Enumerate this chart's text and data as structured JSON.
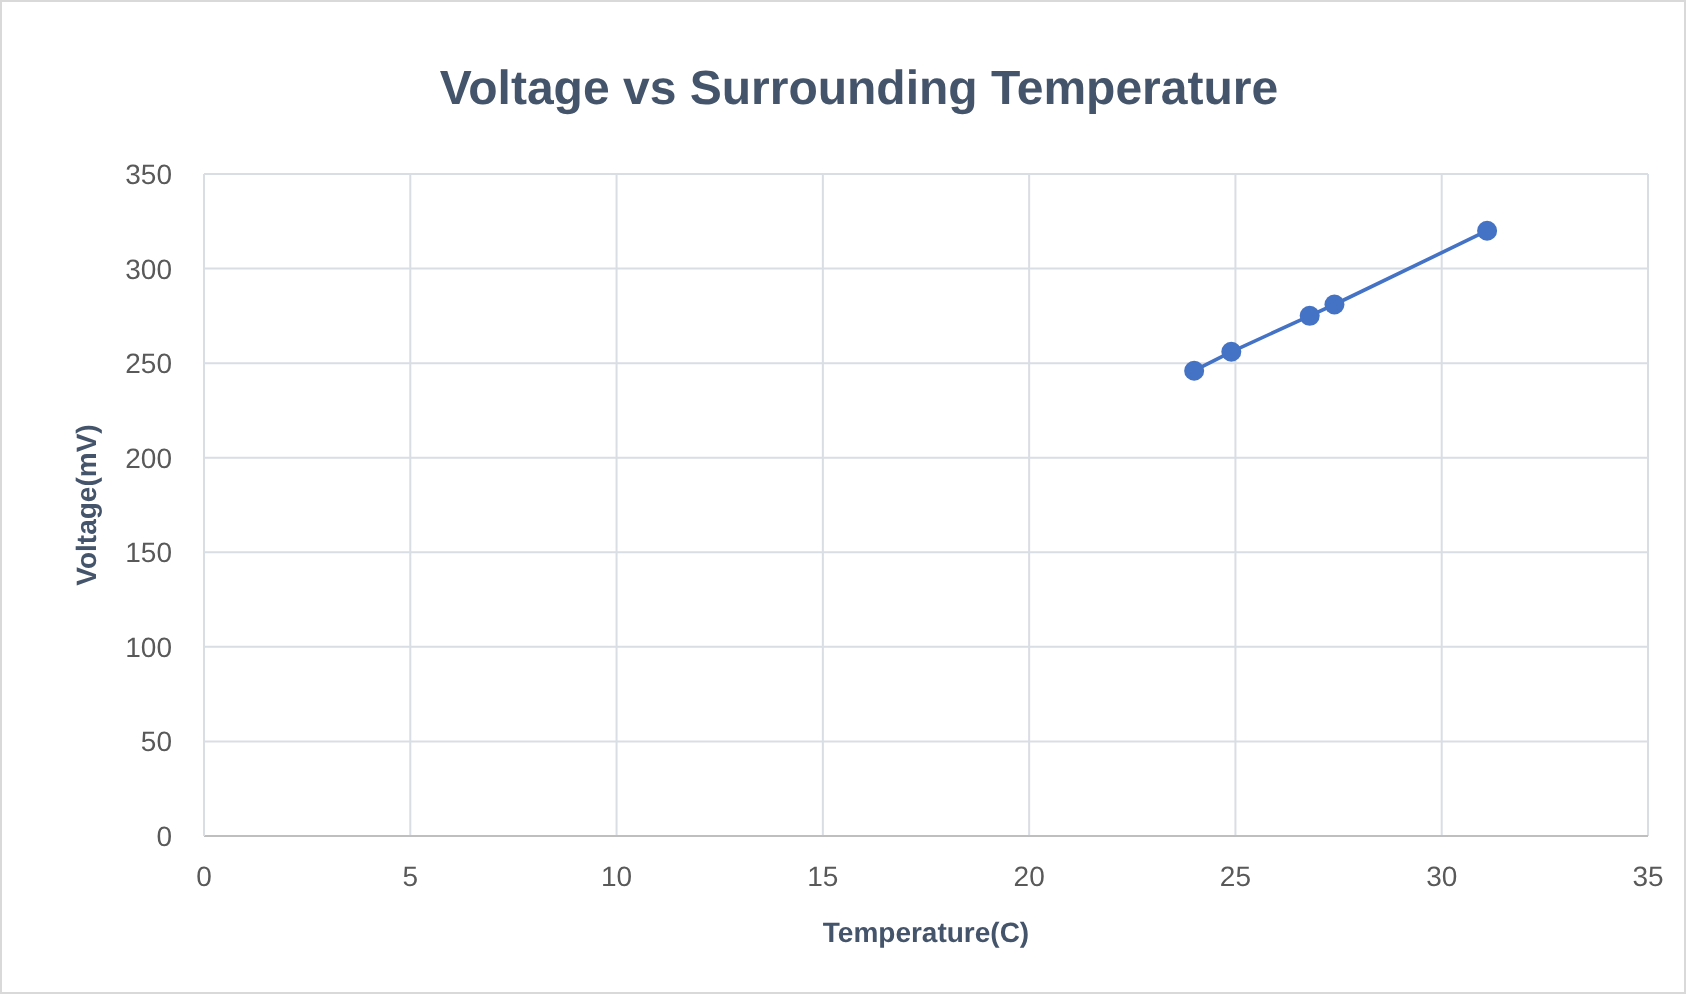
{
  "chart_data": {
    "type": "line",
    "title": "Voltage vs Surrounding Temperature",
    "xlabel": "Temperature(C)",
    "ylabel": "Voltage(mV)",
    "x": [
      24.0,
      24.9,
      26.8,
      27.4,
      31.1
    ],
    "series": [
      {
        "color": "#4472c4",
        "values": [
          246,
          256,
          275,
          281,
          320
        ]
      }
    ],
    "xlim": [
      0,
      35
    ],
    "xticks": [
      0,
      5,
      10,
      15,
      20,
      25,
      30,
      35
    ],
    "ylim": [
      0,
      350
    ],
    "yticks": [
      0,
      50,
      100,
      150,
      200,
      250,
      300,
      350
    ],
    "grid": true,
    "marker": "circle",
    "line_style": "solid"
  }
}
